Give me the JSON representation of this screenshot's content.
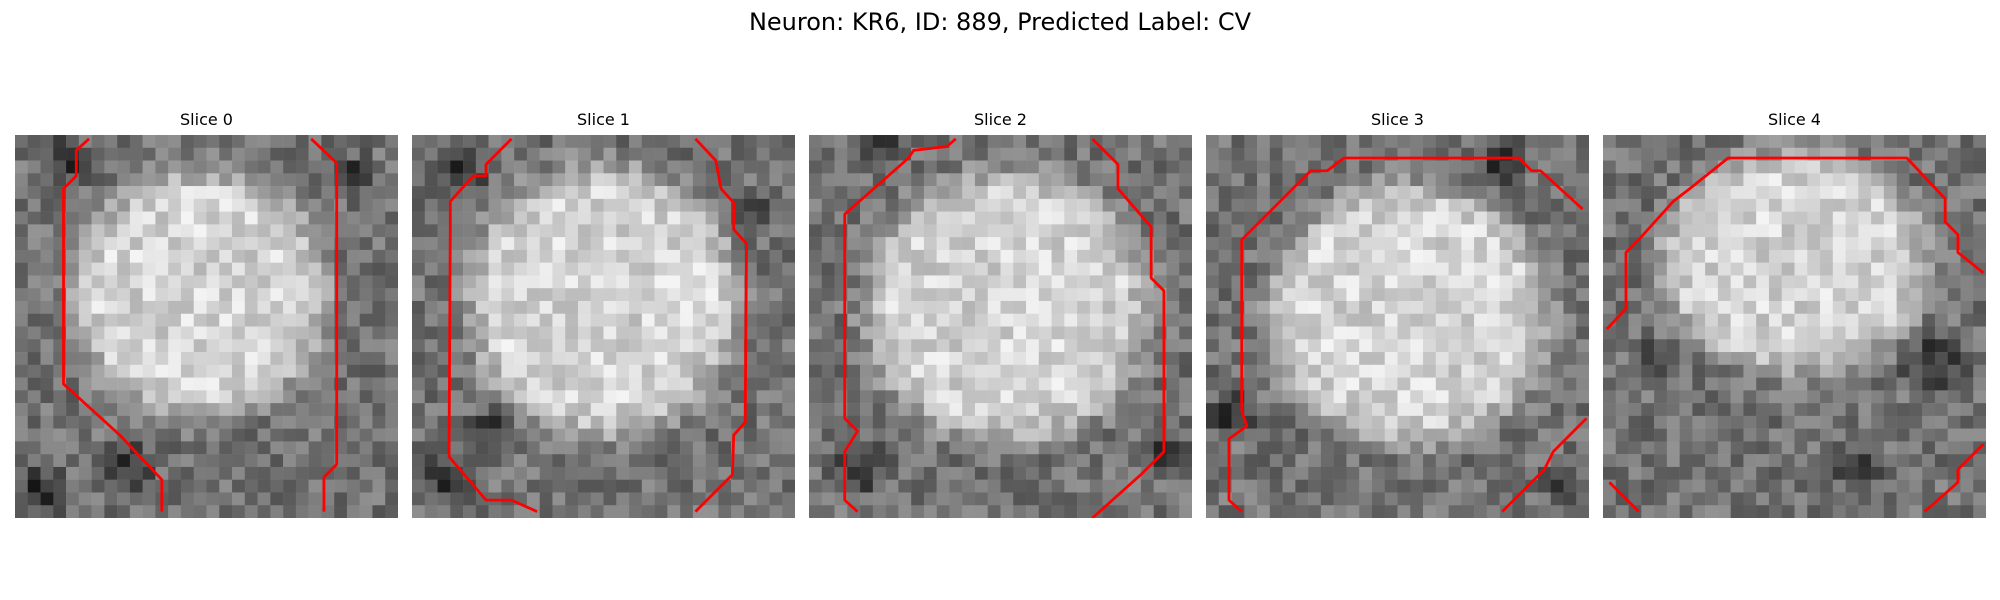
{
  "figure": {
    "title": "Neuron: KR6, ID: 889, Predicted Label: CV",
    "contour_color": "#ff0000",
    "colormap": "gray"
  },
  "slices": [
    {
      "title": "Slice 0"
    },
    {
      "title": "Slice 1"
    },
    {
      "title": "Slice 2"
    },
    {
      "title": "Slice 3"
    },
    {
      "title": "Slice 4"
    }
  ]
}
